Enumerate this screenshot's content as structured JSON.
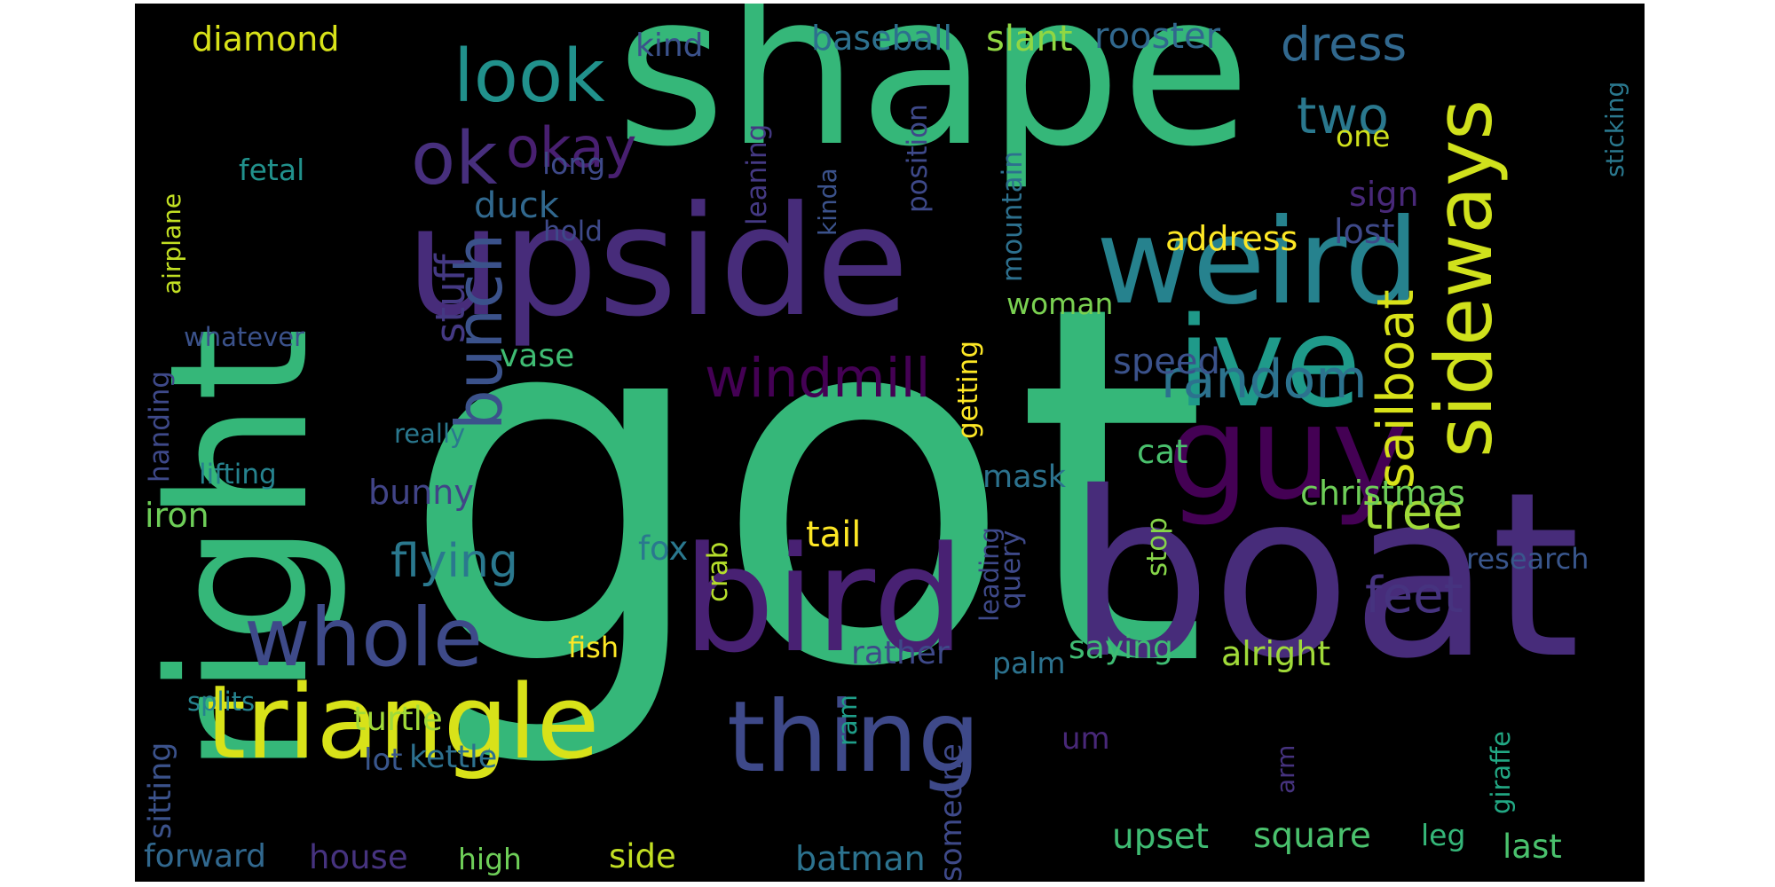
{
  "words": [
    {
      "text": "got",
      "color": "#35b779"
    },
    {
      "text": "shape",
      "color": "#35b779"
    },
    {
      "text": "right",
      "color": "#35b779"
    },
    {
      "text": "boat",
      "color": "#472c7a"
    },
    {
      "text": "upside",
      "color": "#472c7a"
    },
    {
      "text": "weird",
      "color": "#26828e"
    },
    {
      "text": "bird",
      "color": "#482173"
    },
    {
      "text": "ive",
      "color": "#1f9a8a"
    },
    {
      "text": "guy",
      "color": "#440154"
    },
    {
      "text": "triangle",
      "color": "#d8e219"
    },
    {
      "text": "thing",
      "color": "#3e4989"
    },
    {
      "text": "whole",
      "color": "#3e4a89"
    },
    {
      "text": "sideways",
      "color": "#d0e11c"
    },
    {
      "text": "look",
      "color": "#21918c"
    },
    {
      "text": "ok",
      "color": "#472f7d"
    },
    {
      "text": "bunch",
      "color": "#3b528b"
    },
    {
      "text": "okay",
      "color": "#481f70"
    },
    {
      "text": "windmill",
      "color": "#440154"
    },
    {
      "text": "random",
      "color": "#2c728e"
    },
    {
      "text": "sailboat",
      "color": "#d8e219"
    },
    {
      "text": "two",
      "color": "#2a788e"
    },
    {
      "text": "dress",
      "color": "#31688e"
    },
    {
      "text": "tree",
      "color": "#a0da39"
    },
    {
      "text": "feet",
      "color": "#46337f"
    },
    {
      "text": "flying",
      "color": "#2a788e"
    },
    {
      "text": "stuff",
      "color": "#443983"
    },
    {
      "text": "rooster",
      "color": "#31688e"
    },
    {
      "text": "slant",
      "color": "#90d743"
    },
    {
      "text": "baseball",
      "color": "#2d708e"
    },
    {
      "text": "diamond",
      "color": "#d8e219"
    },
    {
      "text": "kind",
      "color": "#3b528b"
    },
    {
      "text": "long",
      "color": "#3e4989"
    },
    {
      "text": "fetal",
      "color": "#21918c"
    },
    {
      "text": "one",
      "color": "#d0e11c"
    },
    {
      "text": "duck",
      "color": "#31688e"
    },
    {
      "text": "hold",
      "color": "#3e4989"
    },
    {
      "text": "address",
      "color": "#fde725"
    },
    {
      "text": "lost",
      "color": "#3e4989"
    },
    {
      "text": "sign",
      "color": "#482878"
    },
    {
      "text": "sticking",
      "color": "#2a788e"
    },
    {
      "text": "airplane",
      "color": "#c2df23"
    },
    {
      "text": "whatever",
      "color": "#3b528b"
    },
    {
      "text": "woman",
      "color": "#7ad151"
    },
    {
      "text": "speed",
      "color": "#3b528b"
    },
    {
      "text": "vase",
      "color": "#3fbc73"
    },
    {
      "text": "really",
      "color": "#2a788e"
    },
    {
      "text": "lifting",
      "color": "#26828e"
    },
    {
      "text": "cat",
      "color": "#4ac16d"
    },
    {
      "text": "mask",
      "color": "#2c728e"
    },
    {
      "text": "christmas",
      "color": "#6ece58"
    },
    {
      "text": "bunny",
      "color": "#414487"
    },
    {
      "text": "iron",
      "color": "#6ece58"
    },
    {
      "text": "handing",
      "color": "#3e4989"
    },
    {
      "text": "tail",
      "color": "#fde725"
    },
    {
      "text": "fox",
      "color": "#2a788e"
    },
    {
      "text": "crab",
      "color": "#b5de2b"
    },
    {
      "text": "query",
      "color": "#3e4989"
    },
    {
      "text": "leading",
      "color": "#3e4989"
    },
    {
      "text": "stop",
      "color": "#86d549"
    },
    {
      "text": "research",
      "color": "#39568c"
    },
    {
      "text": "fish",
      "color": "#fde725"
    },
    {
      "text": "rather",
      "color": "#3e4989"
    },
    {
      "text": "saying",
      "color": "#3fbc73"
    },
    {
      "text": "alright",
      "color": "#a0da39"
    },
    {
      "text": "palm",
      "color": "#2c728e"
    },
    {
      "text": "splits",
      "color": "#26828e"
    },
    {
      "text": "turtle",
      "color": "#a0da39"
    },
    {
      "text": "kettle",
      "color": "#2d708e"
    },
    {
      "text": "lot",
      "color": "#39568c"
    },
    {
      "text": "ram",
      "color": "#1f9e89"
    },
    {
      "text": "um",
      "color": "#482878"
    },
    {
      "text": "someone",
      "color": "#3e4989"
    },
    {
      "text": "giraffe",
      "color": "#22a884"
    },
    {
      "text": "arm",
      "color": "#46337f"
    },
    {
      "text": "sitting",
      "color": "#3b528b"
    },
    {
      "text": "forward",
      "color": "#31688e"
    },
    {
      "text": "house",
      "color": "#46337f"
    },
    {
      "text": "high",
      "color": "#6ece58"
    },
    {
      "text": "side",
      "color": "#c2df23"
    },
    {
      "text": "batman",
      "color": "#2c728e"
    },
    {
      "text": "upset",
      "color": "#3fbc73"
    },
    {
      "text": "square",
      "color": "#4ac16d"
    },
    {
      "text": "leg",
      "color": "#35b779"
    },
    {
      "text": "last",
      "color": "#4ac16d"
    },
    {
      "text": "position",
      "color": "#3e4989"
    },
    {
      "text": "kinda",
      "color": "#3b528b"
    },
    {
      "text": "mountain",
      "color": "#2d708e"
    },
    {
      "text": "leaning",
      "color": "#443983"
    },
    {
      "text": "getting",
      "color": "#fde725"
    }
  ]
}
